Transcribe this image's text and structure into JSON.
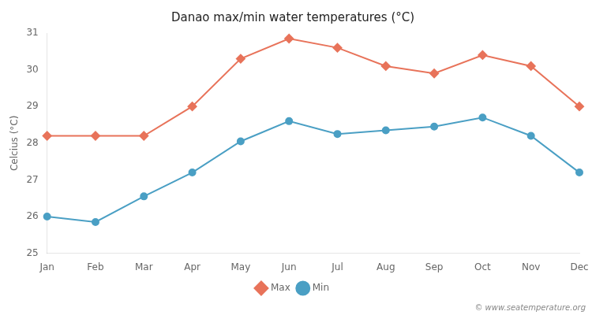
{
  "chart_data": {
    "type": "line",
    "title": "Danao max/min water temperatures (°C)",
    "y_label": "Celcius (°C)",
    "categories": [
      "Jan",
      "Feb",
      "Mar",
      "Apr",
      "May",
      "Jun",
      "Jul",
      "Aug",
      "Sep",
      "Oct",
      "Nov",
      "Dec"
    ],
    "series": [
      {
        "name": "Max",
        "color": "#e8735a",
        "marker": "diamond",
        "values": [
          28.2,
          28.2,
          28.2,
          29.0,
          30.3,
          30.85,
          30.6,
          30.1,
          29.9,
          30.4,
          30.1,
          29.0
        ]
      },
      {
        "name": "Min",
        "color": "#4a9fc4",
        "marker": "circle",
        "values": [
          26.0,
          25.85,
          26.55,
          27.2,
          28.05,
          28.6,
          28.25,
          28.35,
          28.45,
          28.7,
          28.2,
          27.2
        ]
      }
    ],
    "ylim": [
      25,
      31
    ],
    "yticks": [
      25,
      26,
      27,
      28,
      29,
      30,
      31
    ],
    "grid": false,
    "legend": "bottom",
    "annotations": [
      "© www.seatemperature.org"
    ]
  }
}
